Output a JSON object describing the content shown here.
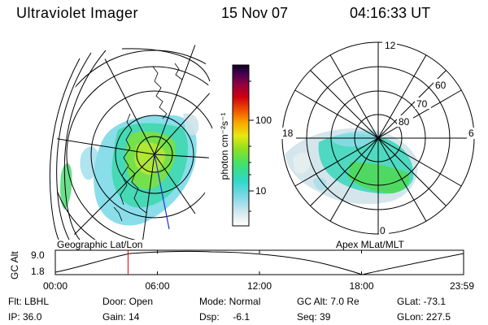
{
  "header": {
    "title": "Ultraviolet Imager",
    "date": "15 Nov 07",
    "time": "04:16:33 UT"
  },
  "colorbar": {
    "unit_label": "photon cm⁻²s⁻¹",
    "ticks": [
      "100",
      "10"
    ]
  },
  "left_panel": {
    "caption": "Geographic Lat/Lon"
  },
  "right_panel": {
    "caption": "Apex MLat/MLT",
    "mlt_labels": [
      "12",
      "18",
      "6",
      "0"
    ],
    "lat_labels": [
      "60",
      "70",
      "80"
    ]
  },
  "altitude_plot": {
    "ylabel": "GC Alt",
    "yticks": [
      "9.0",
      "1.8"
    ],
    "xticks": [
      "00:00",
      "06:00",
      "12:00",
      "18:00",
      "23:59"
    ],
    "current_time_hours": 4.276
  },
  "info": {
    "row1": {
      "flt": "Flt: LBHL",
      "door": "Door: Open",
      "mode": "Mode: Normal",
      "gcalt": "GC Alt: 7.0 Re",
      "glat": "GLat: -73.1"
    },
    "row2": {
      "ip": "IP: 36.0",
      "gain": "Gain: 14",
      "dsp": "Dsp:     -6.1",
      "seq": "Seq: 39",
      "glon": "GLon: 227.5"
    }
  },
  "colors": {
    "marker": "#e00000",
    "axis": "#000000"
  }
}
